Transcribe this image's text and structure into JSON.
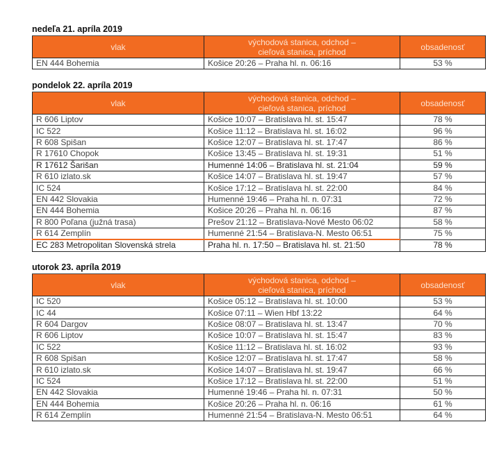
{
  "headers": {
    "train": "vlak",
    "route_line1": "východová stanica, odchod –",
    "route_line2": "cieľová stanica, príchod",
    "occupancy": "obsadenosť"
  },
  "accent_color": "#f26b21",
  "days": [
    {
      "title": "nedeľa 21. apríla 2019",
      "rows": [
        {
          "train": "EN 444 Bohemia",
          "route": "Košice 20:26 – Praha hl. n. 06:16",
          "occupancy": "53 %"
        }
      ]
    },
    {
      "title": "pondelok 22. apríla 2019",
      "rows": [
        {
          "train": "R 606 Liptov",
          "route": "Košice 10:07 – Bratislava hl. st. 15:47",
          "occupancy": "78 %"
        },
        {
          "train": "IC 522",
          "route": "Košice 11:12 – Bratislava hl. st. 16:02",
          "occupancy": "96 %"
        },
        {
          "train": "R 608 Spišan",
          "route": "Košice 12:07 – Bratislava hl. st. 17:47",
          "occupancy": "86 %"
        },
        {
          "train": "R 17610 Chopok",
          "route": "Košice 13:45 – Bratislava hl. st. 19:31",
          "occupancy": "51 %"
        },
        {
          "train": "R 17612 Šarišan",
          "route": "Humenné 14:06 – Bratislava hl. st. 21:04",
          "occupancy": "59 %"
        },
        {
          "train": "R 610 izlato.sk",
          "route": "Košice 14:07 – Bratislava hl. st. 19:47",
          "occupancy": "57 %"
        },
        {
          "train": "IC 524",
          "route": "Košice 17:12 – Bratislava hl. st. 22:00",
          "occupancy": "84 %"
        },
        {
          "train": "EN 442 Slovakia",
          "route": "Humenné 19:46 – Praha hl. n. 07:31",
          "occupancy": "72 %"
        },
        {
          "train": "EN 444 Bohemia",
          "route": "Košice 20:26 – Praha hl. n. 06:16",
          "occupancy": "87 %"
        },
        {
          "train": "R 800 Poľana (južná trasa)",
          "route": "Prešov 21:12 – Bratislava-Nové Mesto 06:02",
          "occupancy": "58 %"
        },
        {
          "train": "R 614 Zemplín",
          "route": "Humenné 21:54 – Bratislava-N. Mesto 06:51",
          "occupancy": "75 %"
        },
        {
          "train": "EC 283 Metropolitan Slovenská strela",
          "route": "Praha hl. n. 17:50 – Bratislava hl. st. 21:50",
          "occupancy": "78 %"
        }
      ]
    },
    {
      "title": "utorok 23. apríla 2019",
      "rows": [
        {
          "train": "IC 520",
          "route": "Košice 05:12 – Bratislava hl. st. 10:00",
          "occupancy": "53 %"
        },
        {
          "train": "IC 44",
          "route": "Košice 07:11 – Wien Hbf 13:22",
          "occupancy": "64 %"
        },
        {
          "train": "R 604 Dargov",
          "route": "Košice 08:07 – Bratislava hl. st. 13:47",
          "occupancy": "70 %"
        },
        {
          "train": "R 606 Liptov",
          "route": "Košice 10:07 – Bratislava hl. st. 15:47",
          "occupancy": "83 %"
        },
        {
          "train": "IC 522",
          "route": "Košice 11:12 – Bratislava hl. st. 16:02",
          "occupancy": "93 %"
        },
        {
          "train": "R 608 Spišan",
          "route": "Košice 12:07 – Bratislava hl. st. 17:47",
          "occupancy": "58 %"
        },
        {
          "train": "R 610 izlato.sk",
          "route": "Košice 14:07 – Bratislava hl. st. 19:47",
          "occupancy": "66 %"
        },
        {
          "train": "IC 524",
          "route": "Košice 17:12 – Bratislava hl. st. 22:00",
          "occupancy": "51 %"
        },
        {
          "train": "EN 442 Slovakia",
          "route": "Humenné 19:46 – Praha hl. n. 07:31",
          "occupancy": "50 %"
        },
        {
          "train": "EN 444 Bohemia",
          "route": "Košice 20:26 – Praha hl. n. 06:16",
          "occupancy": "61 %"
        },
        {
          "train": "R 614 Zemplín",
          "route": "Humenné 21:54 – Bratislava-N. Mesto 06:51",
          "occupancy": "64 %"
        }
      ]
    }
  ]
}
